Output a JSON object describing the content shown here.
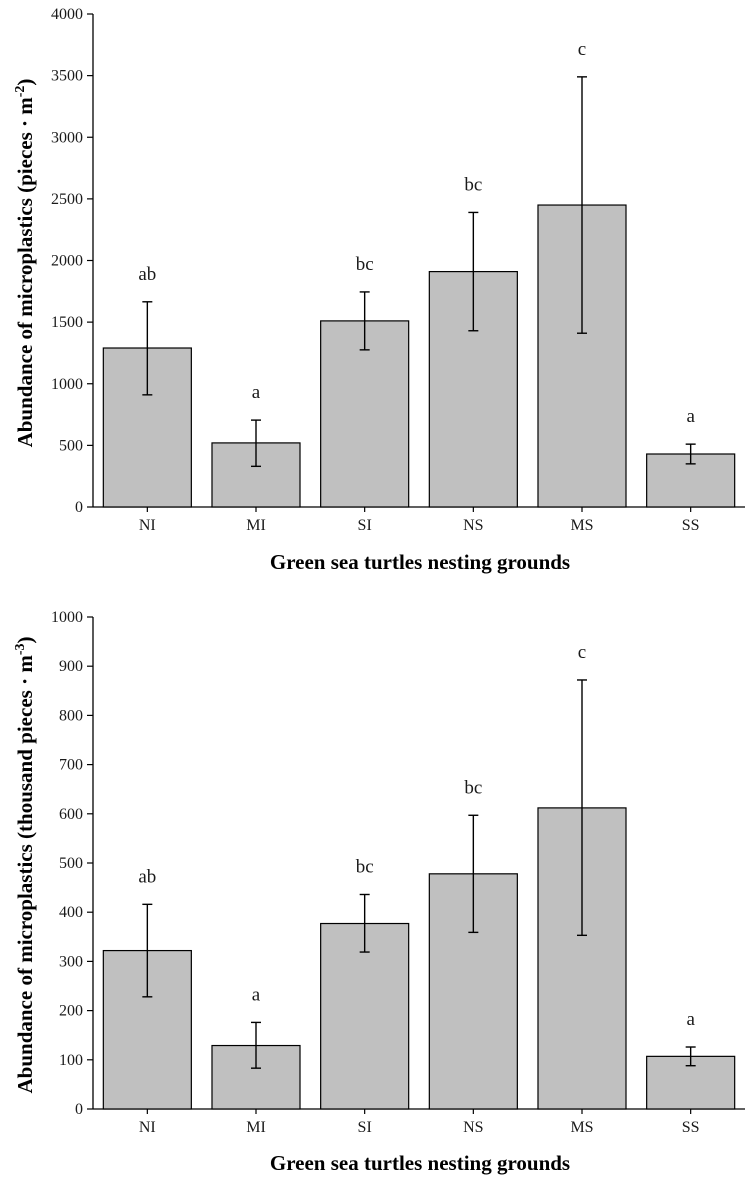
{
  "chart_data": [
    {
      "type": "bar",
      "title": "",
      "xlabel": "Green sea turtles nesting grounds",
      "ylabel": "Abundance of microplastics (pieces · m",
      "ylabel_sup": "-2",
      "ylabel_close": ")",
      "categories": [
        "NI",
        "MI",
        "SI",
        "NS",
        "MS",
        "SS"
      ],
      "values": [
        1290,
        520,
        1510,
        1910,
        2450,
        430
      ],
      "error_low": [
        910,
        330,
        1275,
        1430,
        1410,
        350
      ],
      "error_high": [
        1665,
        705,
        1745,
        2390,
        3490,
        510
      ],
      "significance": [
        "ab",
        "a",
        "bc",
        "bc",
        "c",
        "a"
      ],
      "ylim": [
        0,
        4000
      ],
      "yticks": [
        0,
        500,
        1000,
        1500,
        2000,
        2500,
        3000,
        3500,
        4000
      ],
      "bar_color": "#c0c0c0",
      "grid": false
    },
    {
      "type": "bar",
      "title": "",
      "xlabel": "Green sea turtles nesting grounds",
      "ylabel": "Abundance of microplastics (thousand pieces · m",
      "ylabel_sup": "-3",
      "ylabel_close": ")",
      "categories": [
        "NI",
        "MI",
        "SI",
        "NS",
        "MS",
        "SS"
      ],
      "values": [
        322,
        129,
        377,
        478,
        612,
        107
      ],
      "error_low": [
        228,
        83,
        319,
        359,
        353,
        88
      ],
      "error_high": [
        416,
        176,
        436,
        597,
        872,
        126
      ],
      "significance": [
        "ab",
        "a",
        "bc",
        "bc",
        "c",
        "a"
      ],
      "ylim": [
        0,
        1000
      ],
      "yticks": [
        0,
        100,
        200,
        300,
        400,
        500,
        600,
        700,
        800,
        900,
        1000
      ],
      "bar_color": "#c0c0c0",
      "grid": false
    }
  ]
}
